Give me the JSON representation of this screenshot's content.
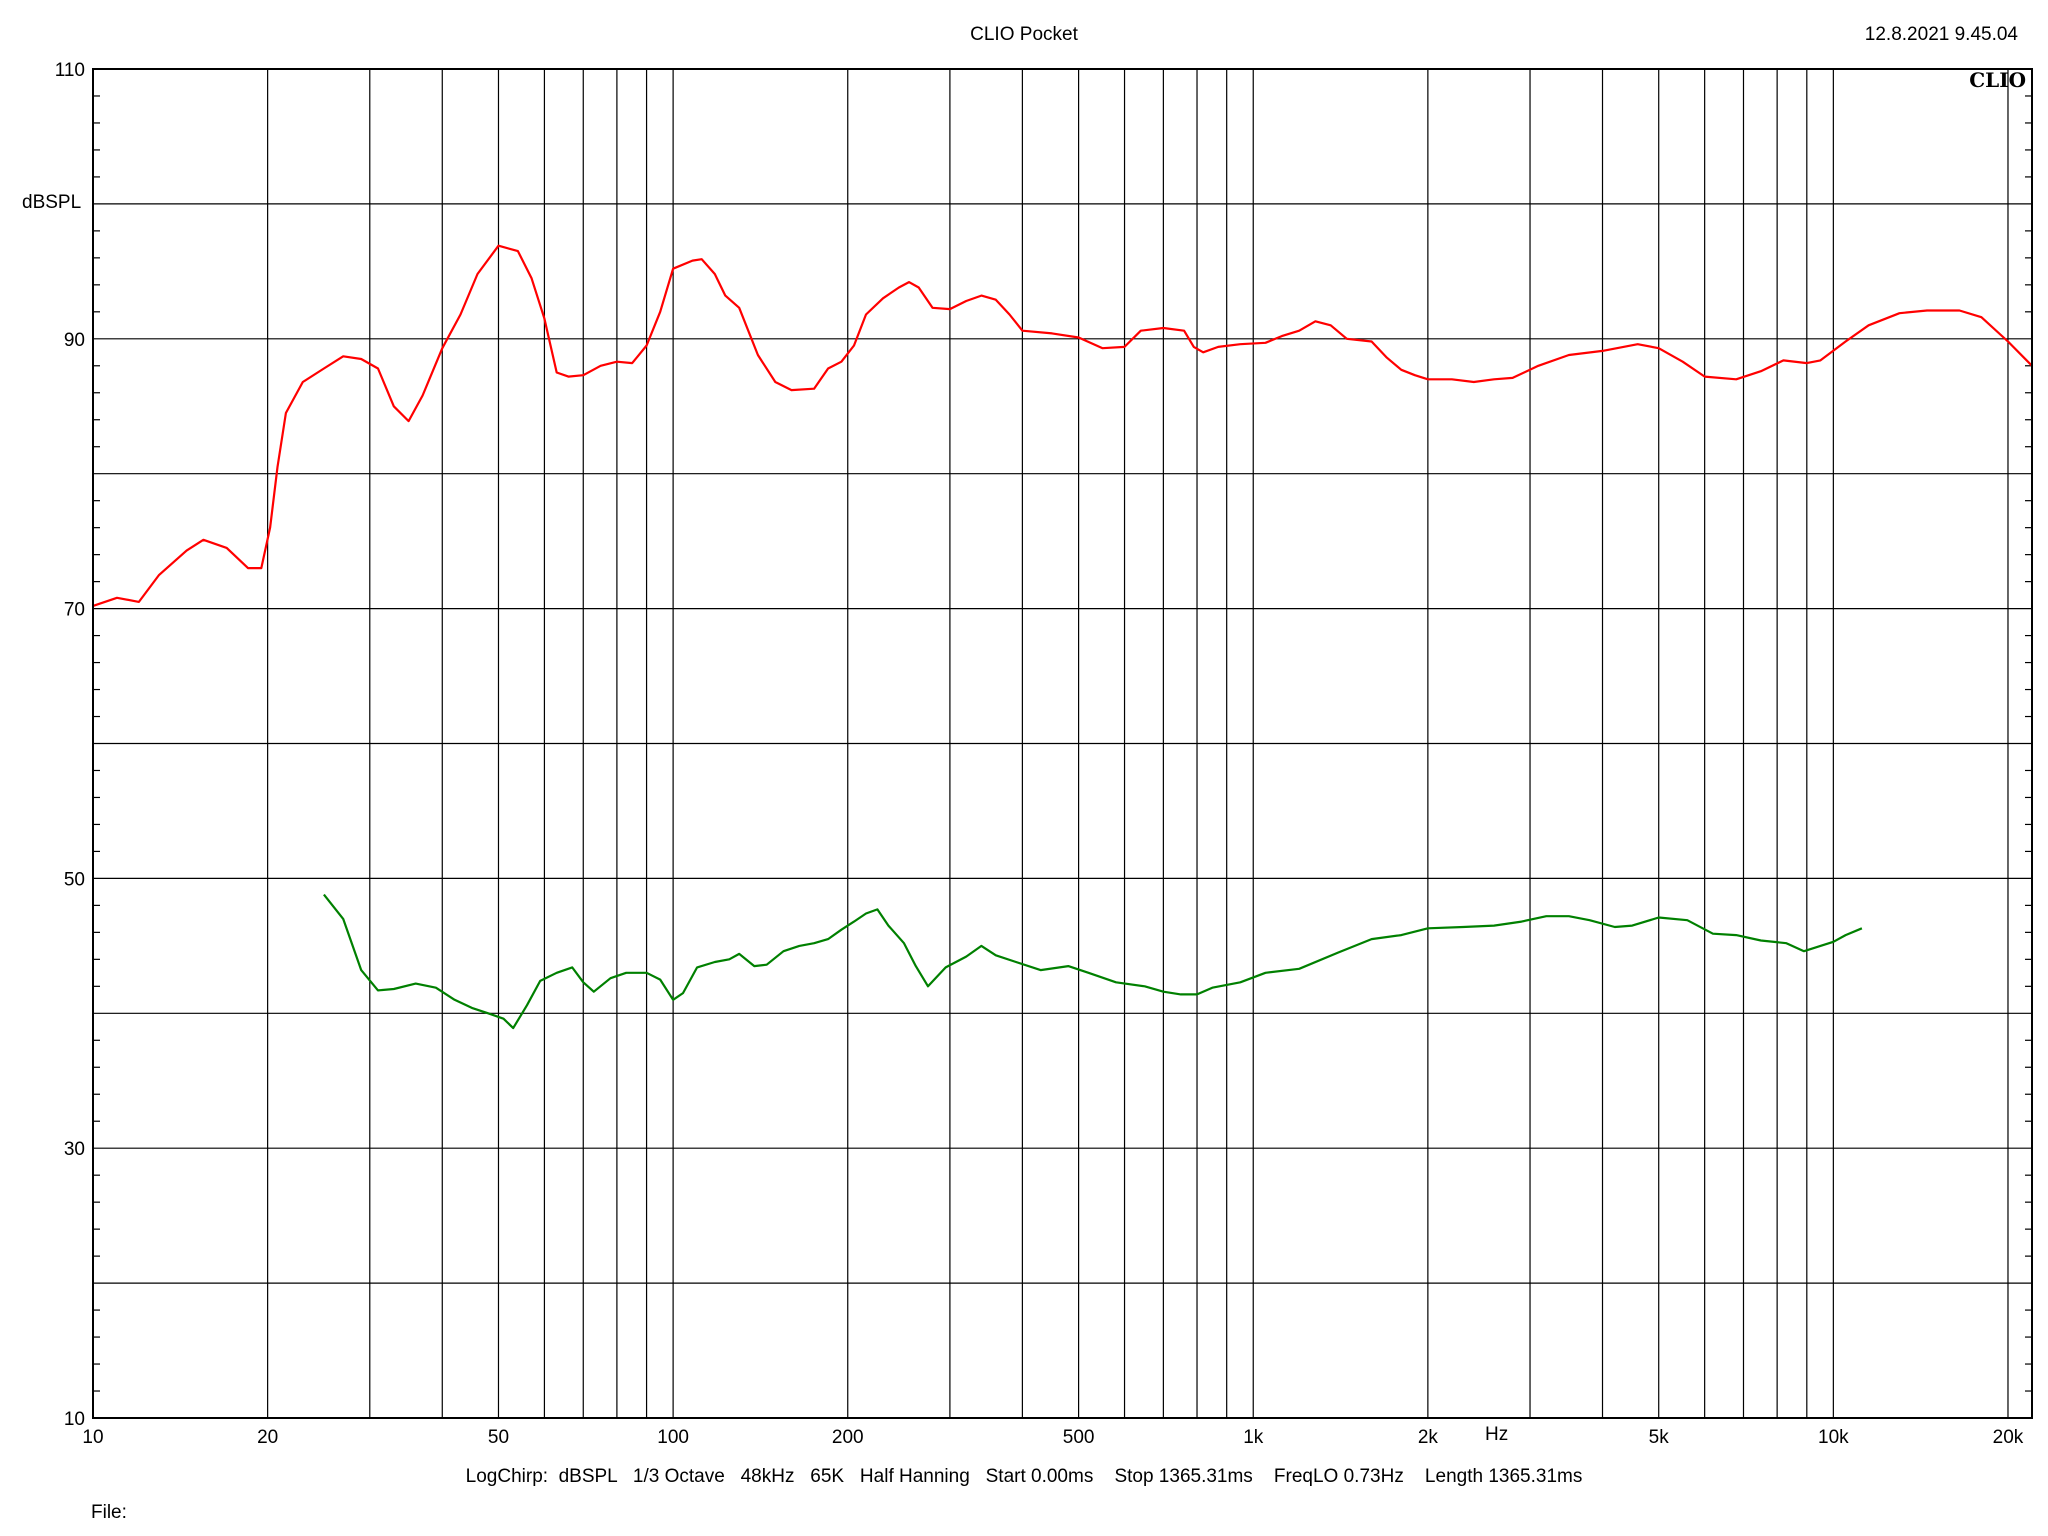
{
  "header": {
    "title": "CLIO Pocket",
    "timestamp": "12.8.2021 9.45.04",
    "logo": "CLIO"
  },
  "footer": {
    "settings": "LogChirp:  dBSPL   1/3 Octave   48kHz   65K   Half Hanning   Start 0.00ms    Stop 1365.31ms    FreqLO 0.73Hz    Length 1365.31ms",
    "file_label": "File:"
  },
  "colors": {
    "background": "#ffffff",
    "grid": "#000000",
    "series_red": "#ff0000",
    "series_green": "#008000"
  },
  "chart_data": {
    "type": "line",
    "title": "CLIO Pocket",
    "ylabel": "dBSPL",
    "xlabel": "Hz",
    "xscale": "log",
    "xlim": [
      10,
      22000
    ],
    "ylim": [
      10,
      110
    ],
    "grid": true,
    "y_tick_labels": [
      {
        "value": 10,
        "label": "10"
      },
      {
        "value": 30,
        "label": "30"
      },
      {
        "value": 50,
        "label": "50"
      },
      {
        "value": 70,
        "label": "70"
      },
      {
        "value": 90,
        "label": "90"
      },
      {
        "value": 110,
        "label": "110"
      }
    ],
    "y_grid": [
      10,
      20,
      30,
      40,
      50,
      60,
      70,
      80,
      90,
      100,
      110
    ],
    "x_tick_labels": [
      {
        "value": 10,
        "label": "10"
      },
      {
        "value": 20,
        "label": "20"
      },
      {
        "value": 50,
        "label": "50"
      },
      {
        "value": 100,
        "label": "100"
      },
      {
        "value": 200,
        "label": "200"
      },
      {
        "value": 500,
        "label": "500"
      },
      {
        "value": 1000,
        "label": "1k"
      },
      {
        "value": 2000,
        "label": "2k"
      },
      {
        "value": 5000,
        "label": "5k"
      },
      {
        "value": 10000,
        "label": "10k"
      },
      {
        "value": 20000,
        "label": "20k"
      }
    ],
    "x_grid": [
      20,
      30,
      40,
      50,
      60,
      70,
      80,
      90,
      100,
      200,
      300,
      400,
      500,
      600,
      700,
      800,
      900,
      1000,
      2000,
      3000,
      4000,
      5000,
      6000,
      7000,
      8000,
      9000,
      10000,
      20000
    ],
    "series": [
      {
        "color": "#ff0000",
        "points": [
          [
            10,
            70.2
          ],
          [
            11,
            70.8
          ],
          [
            12,
            70.5
          ],
          [
            13,
            72.5
          ],
          [
            14.5,
            74.3
          ],
          [
            15.5,
            75.1
          ],
          [
            17,
            74.5
          ],
          [
            18.5,
            73.0
          ],
          [
            19.5,
            73.0
          ],
          [
            20.2,
            76.0
          ],
          [
            20.8,
            80.5
          ],
          [
            21.5,
            84.5
          ],
          [
            23,
            86.8
          ],
          [
            25,
            87.8
          ],
          [
            27,
            88.7
          ],
          [
            29,
            88.5
          ],
          [
            31,
            87.8
          ],
          [
            33,
            85.0
          ],
          [
            35,
            83.9
          ],
          [
            37,
            85.8
          ],
          [
            40,
            89.3
          ],
          [
            43,
            91.8
          ],
          [
            46,
            94.8
          ],
          [
            50,
            96.9
          ],
          [
            54,
            96.5
          ],
          [
            57,
            94.5
          ],
          [
            60,
            91.5
          ],
          [
            63,
            87.5
          ],
          [
            66,
            87.2
          ],
          [
            70,
            87.3
          ],
          [
            75,
            88.0
          ],
          [
            80,
            88.3
          ],
          [
            85,
            88.2
          ],
          [
            90,
            89.5
          ],
          [
            95,
            92.0
          ],
          [
            100,
            95.2
          ],
          [
            108,
            95.8
          ],
          [
            112,
            95.9
          ],
          [
            118,
            94.8
          ],
          [
            123,
            93.2
          ],
          [
            130,
            92.3
          ],
          [
            140,
            88.8
          ],
          [
            150,
            86.8
          ],
          [
            160,
            86.2
          ],
          [
            175,
            86.3
          ],
          [
            185,
            87.8
          ],
          [
            195,
            88.3
          ],
          [
            205,
            89.5
          ],
          [
            215,
            91.8
          ],
          [
            230,
            93.0
          ],
          [
            245,
            93.8
          ],
          [
            255,
            94.2
          ],
          [
            265,
            93.8
          ],
          [
            280,
            92.3
          ],
          [
            300,
            92.2
          ],
          [
            320,
            92.8
          ],
          [
            340,
            93.2
          ],
          [
            360,
            92.9
          ],
          [
            380,
            91.8
          ],
          [
            400,
            90.6
          ],
          [
            450,
            90.4
          ],
          [
            500,
            90.1
          ],
          [
            550,
            89.3
          ],
          [
            600,
            89.4
          ],
          [
            640,
            90.6
          ],
          [
            700,
            90.8
          ],
          [
            760,
            90.6
          ],
          [
            790,
            89.4
          ],
          [
            820,
            89.0
          ],
          [
            870,
            89.4
          ],
          [
            950,
            89.6
          ],
          [
            1050,
            89.7
          ],
          [
            1120,
            90.2
          ],
          [
            1200,
            90.6
          ],
          [
            1280,
            91.3
          ],
          [
            1360,
            91.0
          ],
          [
            1450,
            90.0
          ],
          [
            1600,
            89.8
          ],
          [
            1700,
            88.6
          ],
          [
            1800,
            87.7
          ],
          [
            1900,
            87.3
          ],
          [
            2000,
            87.0
          ],
          [
            2200,
            87.0
          ],
          [
            2400,
            86.8
          ],
          [
            2600,
            87.0
          ],
          [
            2800,
            87.1
          ],
          [
            3100,
            88.0
          ],
          [
            3500,
            88.8
          ],
          [
            4000,
            89.1
          ],
          [
            4600,
            89.6
          ],
          [
            5000,
            89.3
          ],
          [
            5500,
            88.3
          ],
          [
            6000,
            87.2
          ],
          [
            6800,
            87.0
          ],
          [
            7500,
            87.6
          ],
          [
            8200,
            88.4
          ],
          [
            9000,
            88.2
          ],
          [
            9500,
            88.4
          ],
          [
            10500,
            89.8
          ],
          [
            11500,
            91.0
          ],
          [
            13000,
            91.9
          ],
          [
            14500,
            92.1
          ],
          [
            16500,
            92.1
          ],
          [
            18000,
            91.6
          ],
          [
            20000,
            89.8
          ],
          [
            22000,
            88.0
          ]
        ]
      },
      {
        "color": "#008000",
        "points": [
          [
            25,
            48.8
          ],
          [
            27,
            47.0
          ],
          [
            29,
            43.2
          ],
          [
            31,
            41.7
          ],
          [
            33,
            41.8
          ],
          [
            36,
            42.2
          ],
          [
            39,
            41.9
          ],
          [
            42,
            41.0
          ],
          [
            45,
            40.4
          ],
          [
            48,
            40.0
          ],
          [
            51,
            39.6
          ],
          [
            53,
            38.9
          ],
          [
            56,
            40.6
          ],
          [
            59,
            42.4
          ],
          [
            63,
            43.0
          ],
          [
            67,
            43.4
          ],
          [
            70,
            42.3
          ],
          [
            73,
            41.6
          ],
          [
            78,
            42.6
          ],
          [
            83,
            43.0
          ],
          [
            90,
            43.0
          ],
          [
            95,
            42.5
          ],
          [
            100,
            41.0
          ],
          [
            104,
            41.5
          ],
          [
            110,
            43.4
          ],
          [
            118,
            43.8
          ],
          [
            125,
            44.0
          ],
          [
            130,
            44.4
          ],
          [
            138,
            43.5
          ],
          [
            145,
            43.6
          ],
          [
            155,
            44.6
          ],
          [
            165,
            45.0
          ],
          [
            175,
            45.2
          ],
          [
            185,
            45.5
          ],
          [
            195,
            46.2
          ],
          [
            205,
            46.8
          ],
          [
            215,
            47.4
          ],
          [
            225,
            47.7
          ],
          [
            235,
            46.5
          ],
          [
            250,
            45.2
          ],
          [
            262,
            43.5
          ],
          [
            275,
            42.0
          ],
          [
            295,
            43.4
          ],
          [
            320,
            44.2
          ],
          [
            340,
            45.0
          ],
          [
            360,
            44.3
          ],
          [
            390,
            43.8
          ],
          [
            430,
            43.2
          ],
          [
            480,
            43.5
          ],
          [
            520,
            43.0
          ],
          [
            580,
            42.3
          ],
          [
            650,
            42.0
          ],
          [
            700,
            41.6
          ],
          [
            750,
            41.4
          ],
          [
            800,
            41.4
          ],
          [
            850,
            41.9
          ],
          [
            950,
            42.3
          ],
          [
            1050,
            43.0
          ],
          [
            1200,
            43.3
          ],
          [
            1400,
            44.5
          ],
          [
            1600,
            45.5
          ],
          [
            1800,
            45.8
          ],
          [
            2000,
            46.3
          ],
          [
            2300,
            46.4
          ],
          [
            2600,
            46.5
          ],
          [
            2900,
            46.8
          ],
          [
            3200,
            47.2
          ],
          [
            3500,
            47.2
          ],
          [
            3800,
            46.9
          ],
          [
            4200,
            46.4
          ],
          [
            4500,
            46.5
          ],
          [
            5000,
            47.1
          ],
          [
            5600,
            46.9
          ],
          [
            6200,
            45.9
          ],
          [
            6800,
            45.8
          ],
          [
            7500,
            45.4
          ],
          [
            8300,
            45.2
          ],
          [
            8900,
            44.6
          ],
          [
            9500,
            45.0
          ],
          [
            10000,
            45.3
          ],
          [
            10500,
            45.8
          ],
          [
            11200,
            46.3
          ]
        ]
      }
    ]
  }
}
